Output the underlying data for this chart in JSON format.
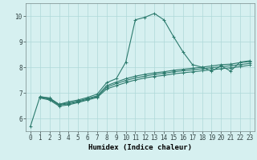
{
  "title": "",
  "xlabel": "Humidex (Indice chaleur)",
  "ylabel": "",
  "xlim": [
    -0.5,
    23.5
  ],
  "ylim": [
    5.5,
    10.5
  ],
  "yticks": [
    6,
    7,
    8,
    9,
    10
  ],
  "xticks": [
    0,
    1,
    2,
    3,
    4,
    5,
    6,
    7,
    8,
    9,
    10,
    11,
    12,
    13,
    14,
    15,
    16,
    17,
    18,
    19,
    20,
    21,
    22,
    23
  ],
  "bg_color": "#d6f0f0",
  "line_color": "#2d7b6e",
  "lines": [
    {
      "x": [
        0,
        1,
        2,
        3,
        4,
        5,
        6,
        7,
        8,
        9,
        10,
        11,
        12,
        13,
        14,
        15,
        16,
        17,
        18,
        19,
        20,
        21,
        22,
        23
      ],
      "y": [
        5.7,
        6.85,
        6.8,
        6.55,
        6.65,
        6.72,
        6.82,
        6.95,
        7.4,
        7.55,
        8.2,
        9.85,
        9.95,
        10.1,
        9.85,
        9.2,
        8.6,
        8.1,
        8.0,
        7.85,
        8.05,
        7.85,
        8.2,
        8.25
      ]
    },
    {
      "x": [
        1,
        2,
        3,
        4,
        5,
        6,
        7,
        8,
        9,
        10,
        11,
        12,
        13,
        14,
        15,
        16,
        17,
        18,
        19,
        20,
        21,
        22,
        23
      ],
      "y": [
        6.85,
        6.78,
        6.55,
        6.6,
        6.68,
        6.78,
        6.88,
        7.28,
        7.42,
        7.55,
        7.65,
        7.72,
        7.78,
        7.82,
        7.88,
        7.92,
        7.96,
        8.0,
        8.05,
        8.1,
        8.12,
        8.18,
        8.22
      ]
    },
    {
      "x": [
        1,
        2,
        3,
        4,
        5,
        6,
        7,
        8,
        9,
        10,
        11,
        12,
        13,
        14,
        15,
        16,
        17,
        18,
        19,
        20,
        21,
        22,
        23
      ],
      "y": [
        6.82,
        6.75,
        6.52,
        6.57,
        6.65,
        6.75,
        6.85,
        7.22,
        7.36,
        7.48,
        7.58,
        7.65,
        7.72,
        7.76,
        7.82,
        7.86,
        7.9,
        7.94,
        7.98,
        8.02,
        8.06,
        8.1,
        8.15
      ]
    },
    {
      "x": [
        1,
        2,
        3,
        4,
        5,
        6,
        7,
        8,
        9,
        10,
        11,
        12,
        13,
        14,
        15,
        16,
        17,
        18,
        19,
        20,
        21,
        22,
        23
      ],
      "y": [
        6.8,
        6.72,
        6.48,
        6.53,
        6.62,
        6.72,
        6.82,
        7.15,
        7.28,
        7.4,
        7.5,
        7.58,
        7.64,
        7.68,
        7.74,
        7.78,
        7.82,
        7.86,
        7.9,
        7.94,
        7.98,
        8.02,
        8.08
      ]
    }
  ],
  "marker": "+",
  "markersize": 3,
  "linewidth": 0.8,
  "grid_color": "#aed8d8",
  "tick_fontsize": 5.5,
  "label_fontsize": 6.5
}
